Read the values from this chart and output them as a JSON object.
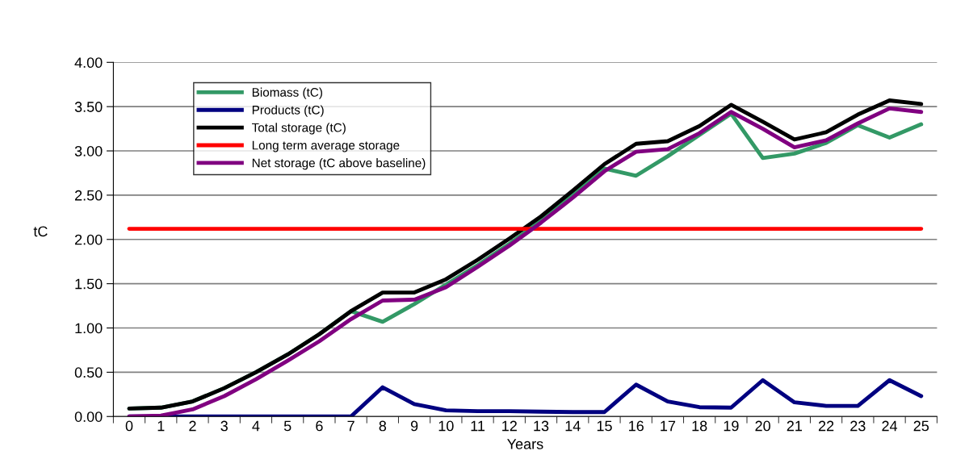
{
  "chart_data": {
    "type": "line",
    "xlabel": "Years",
    "ylabel": "tC",
    "categories": [
      "0",
      "1",
      "2",
      "3",
      "4",
      "5",
      "6",
      "7",
      "8",
      "9",
      "10",
      "11",
      "12",
      "13",
      "14",
      "15",
      "16",
      "17",
      "18",
      "19",
      "20",
      "21",
      "22",
      "23",
      "24",
      "25"
    ],
    "series": [
      {
        "name": "Biomass (tC)",
        "color": "#339966",
        "values": [
          0.09,
          0.1,
          0.17,
          0.32,
          0.5,
          0.7,
          0.93,
          1.19,
          1.07,
          1.27,
          1.49,
          1.71,
          1.95,
          2.21,
          2.5,
          2.8,
          2.72,
          2.94,
          3.18,
          3.42,
          2.92,
          2.97,
          3.09,
          3.29,
          3.15,
          3.3
        ]
      },
      {
        "name": "Products (tC)",
        "color": "#000080",
        "values": [
          0,
          0,
          0,
          0,
          0,
          0,
          0,
          0,
          0.33,
          0.14,
          0.07,
          0.06,
          0.06,
          0.055,
          0.05,
          0.05,
          0.36,
          0.17,
          0.105,
          0.1,
          0.41,
          0.16,
          0.12,
          0.12,
          0.41,
          0.23
        ]
      },
      {
        "name": "Total storage (tC)",
        "color": "#000000",
        "values": [
          0.09,
          0.1,
          0.17,
          0.32,
          0.5,
          0.7,
          0.93,
          1.19,
          1.4,
          1.4,
          1.55,
          1.77,
          2.01,
          2.26,
          2.55,
          2.85,
          3.08,
          3.11,
          3.28,
          3.52,
          3.33,
          3.13,
          3.21,
          3.41,
          3.57,
          3.53
        ]
      },
      {
        "name": "Long term average storage",
        "color": "#ff0000",
        "values": [
          2.12,
          2.12,
          2.12,
          2.12,
          2.12,
          2.12,
          2.12,
          2.12,
          2.12,
          2.12,
          2.12,
          2.12,
          2.12,
          2.12,
          2.12,
          2.12,
          2.12,
          2.12,
          2.12,
          2.12,
          2.12,
          2.12,
          2.12,
          2.12,
          2.12,
          2.12
        ]
      },
      {
        "name": "Net storage (tC above baseline)",
        "color": "#800080",
        "values": [
          0.0,
          0.01,
          0.08,
          0.23,
          0.42,
          0.63,
          0.85,
          1.1,
          1.31,
          1.32,
          1.46,
          1.69,
          1.93,
          2.19,
          2.47,
          2.77,
          2.99,
          3.02,
          3.2,
          3.44,
          3.25,
          3.04,
          3.12,
          3.31,
          3.48,
          3.44
        ]
      }
    ],
    "ylim": [
      0,
      4
    ],
    "yticks": [
      {
        "value": 0,
        "label": "0.00"
      },
      {
        "value": 0.5,
        "label": "0.50"
      },
      {
        "value": 1,
        "label": "1.00"
      },
      {
        "value": 1.5,
        "label": "1.50"
      },
      {
        "value": 2,
        "label": "2.00"
      },
      {
        "value": 2.5,
        "label": "2.50"
      },
      {
        "value": 3,
        "label": "3.00"
      },
      {
        "value": 3.5,
        "label": "3.50"
      },
      {
        "value": 4,
        "label": "4.00"
      }
    ],
    "grid": "y",
    "legend": "top left",
    "marker": "none",
    "line_style": "solid"
  }
}
